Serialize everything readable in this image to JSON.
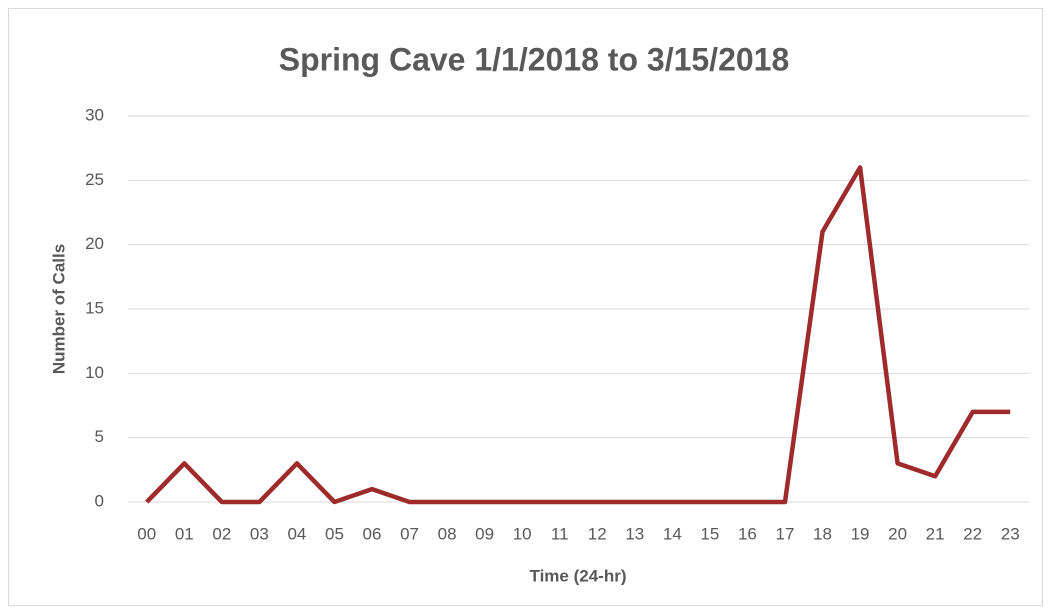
{
  "chart_data": {
    "type": "line",
    "title": "Spring Cave 1/1/2018 to 3/15/2018",
    "x_label": "Time (24-hr)",
    "y_label": "Number of Calls",
    "categories": [
      "00",
      "01",
      "02",
      "03",
      "04",
      "05",
      "06",
      "07",
      "08",
      "09",
      "10",
      "11",
      "12",
      "13",
      "14",
      "15",
      "16",
      "17",
      "18",
      "19",
      "20",
      "21",
      "22",
      "23"
    ],
    "values": [
      0,
      3,
      0,
      0,
      3,
      0,
      1,
      0,
      0,
      0,
      0,
      0,
      0,
      0,
      0,
      0,
      0,
      0,
      21,
      26,
      3,
      2,
      7,
      7
    ],
    "color": "#9e2a2b",
    "ylim": [
      0,
      30
    ],
    "yticks": [
      0,
      5,
      10,
      15,
      20,
      25,
      30
    ],
    "grid": true
  }
}
